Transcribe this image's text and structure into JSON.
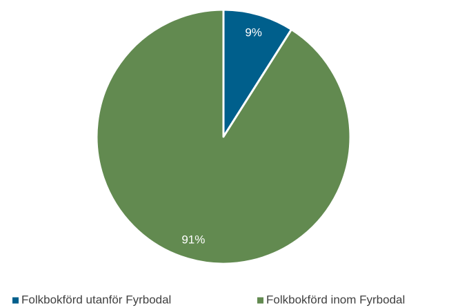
{
  "chart_data": {
    "type": "pie",
    "categories": [
      "Folkbokförd utanför Fyrbodal",
      "Folkbokförd inom Fyrbodal"
    ],
    "values": [
      9,
      91
    ],
    "value_labels": [
      "9%",
      "91%"
    ],
    "colors": [
      "#005f8c",
      "#628a50"
    ],
    "legend": "bottom"
  }
}
